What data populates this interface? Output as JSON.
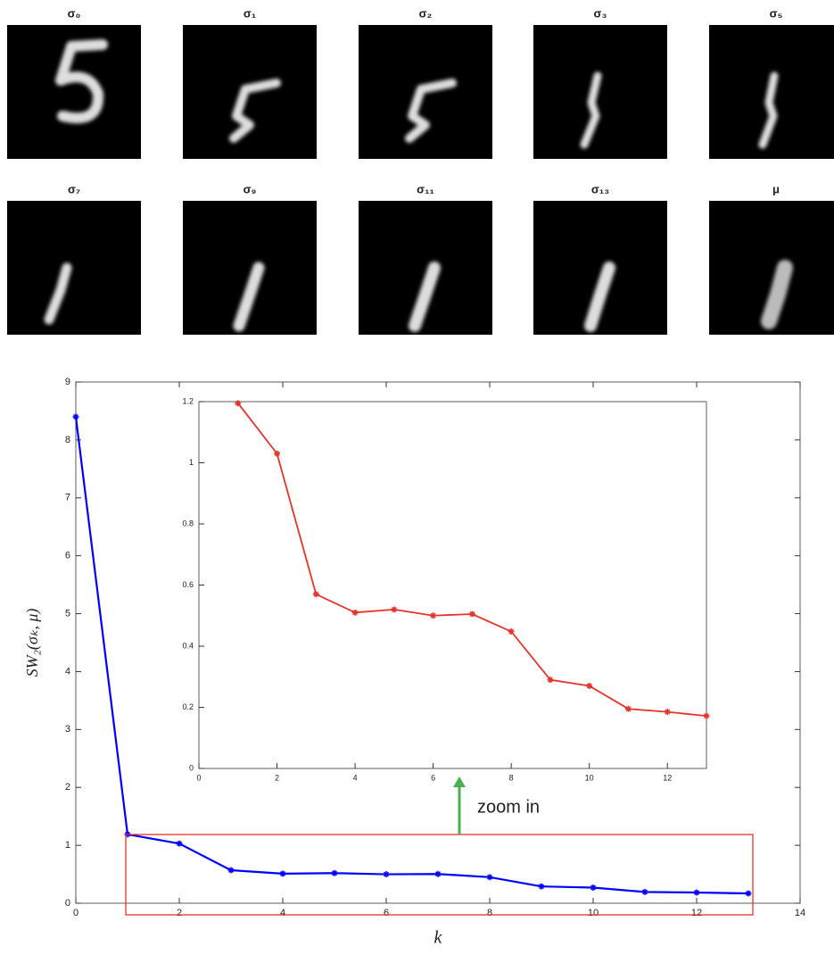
{
  "panels": {
    "titles": [
      "σ₀",
      "σ₁",
      "σ₂",
      "σ₃",
      "σ₅",
      "σ₇",
      "σ₉",
      "σ₁₁",
      "σ₁₃",
      "μ"
    ]
  },
  "chart_data": [
    {
      "type": "line",
      "x": [
        0,
        1,
        2,
        3,
        4,
        5,
        6,
        7,
        8,
        9,
        10,
        11,
        12,
        13
      ],
      "series": [
        {
          "color": "#0000ff",
          "values": [
            8.4,
            1.19,
            1.03,
            0.57,
            0.51,
            0.52,
            0.5,
            0.505,
            0.45,
            0.29,
            0.27,
            0.195,
            0.185,
            0.17
          ]
        }
      ],
      "xlim": [
        0,
        14
      ],
      "xticks": [
        0,
        2,
        4,
        6,
        8,
        10,
        12,
        14
      ],
      "ylim": [
        0,
        9
      ],
      "yticks": [
        0,
        1,
        2,
        3,
        4,
        5,
        6,
        7,
        8,
        9
      ],
      "xlabel": "k",
      "ylabel": "SW₂(σₖ, μ)",
      "annotation": "zoom in"
    },
    {
      "type": "line",
      "x": [
        1,
        2,
        3,
        4,
        5,
        6,
        7,
        8,
        9,
        10,
        11,
        12,
        13
      ],
      "series": [
        {
          "color": "#e8322a",
          "values": [
            1.195,
            1.03,
            0.57,
            0.51,
            0.52,
            0.5,
            0.505,
            0.448,
            0.29,
            0.27,
            0.195,
            0.185,
            0.172
          ]
        }
      ],
      "xlim": [
        0,
        13
      ],
      "xticks": [
        0,
        2,
        4,
        6,
        8,
        10,
        12
      ],
      "ylim": [
        0,
        1.2
      ],
      "yticks": [
        0,
        0.2,
        0.4,
        0.6,
        0.8,
        1,
        1.2
      ]
    }
  ]
}
